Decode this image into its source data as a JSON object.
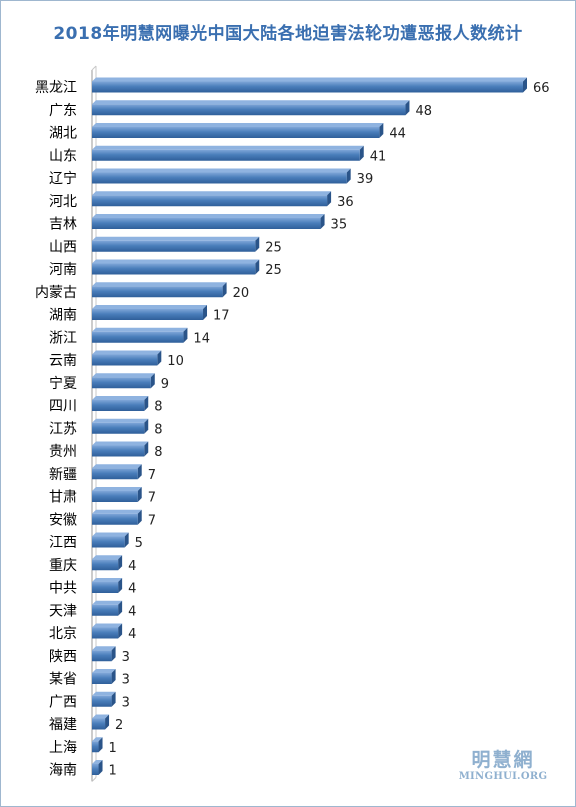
{
  "chart_data": {
    "type": "bar",
    "orientation": "horizontal",
    "title": "2018年明慧网曝光中国大陆各地迫害法轮功遭恶报人数统计",
    "categories": [
      "黑龙江",
      "广东",
      "湖北",
      "山东",
      "辽宁",
      "河北",
      "吉林",
      "山西",
      "河南",
      "内蒙古",
      "湖南",
      "浙江",
      "云南",
      "宁夏",
      "四川",
      "江苏",
      "贵州",
      "新疆",
      "甘肃",
      "安徽",
      "江西",
      "重庆",
      "中共",
      "天津",
      "北京",
      "陕西",
      "某省",
      "广西",
      "福建",
      "上海",
      "海南"
    ],
    "values": [
      66,
      48,
      44,
      41,
      39,
      36,
      35,
      25,
      25,
      20,
      17,
      14,
      10,
      9,
      8,
      8,
      8,
      7,
      7,
      7,
      5,
      4,
      4,
      4,
      4,
      3,
      3,
      3,
      2,
      1,
      1
    ],
    "xlim": [
      0,
      70
    ],
    "grid": false,
    "legend": "none",
    "bar_color": "#4a7ebb"
  },
  "watermark": {
    "name": "明慧網",
    "url": "MINGHUI.ORG"
  }
}
